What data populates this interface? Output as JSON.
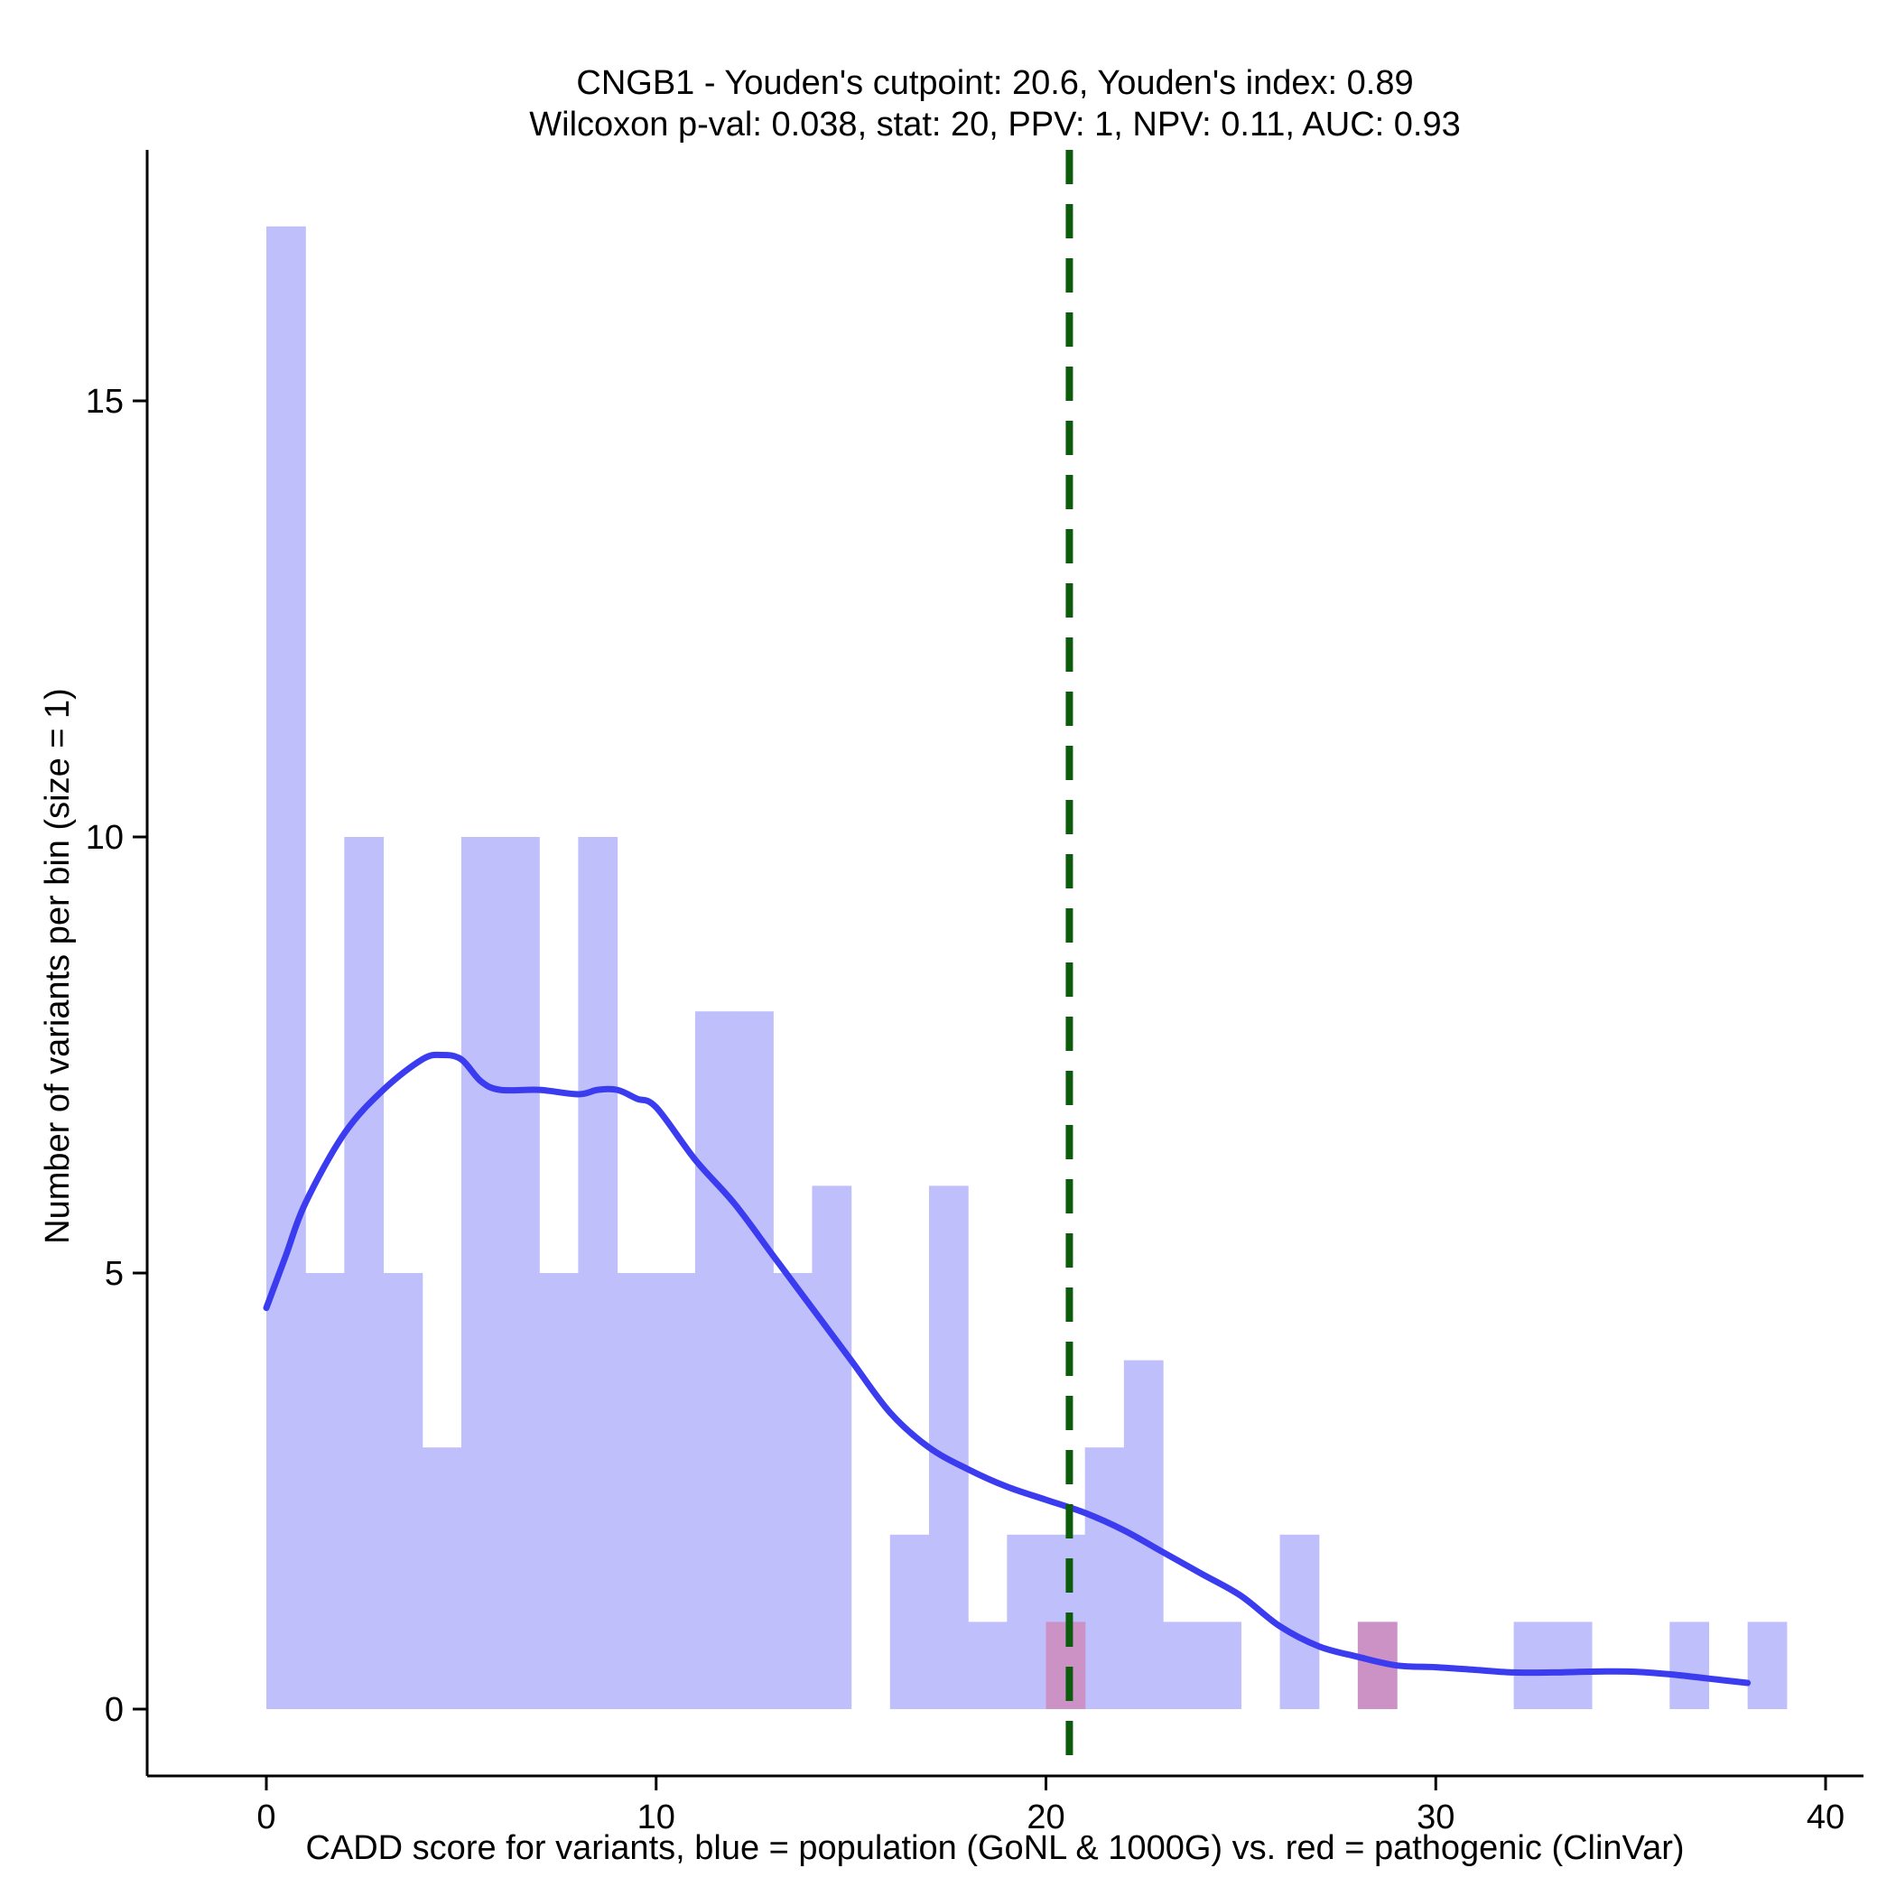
{
  "chart_data": {
    "type": "histogram",
    "title_line1": "CNGB1 - Youden's cutpoint: 20.6, Youden's index: 0.89",
    "title_line2": "Wilcoxon p-val: 0.038, stat: 20, PPV: 1, NPV: 0.11, AUC: 0.93",
    "xlabel": "CADD score for variants, blue = population (GoNL & 1000G) vs. red = pathogenic (ClinVar)",
    "ylabel": "Number of variants per bin (size = 1)",
    "xlim": [
      -3,
      41
    ],
    "ylim": [
      -0.9,
      17.9
    ],
    "xticks": [
      0,
      10,
      20,
      30,
      40
    ],
    "yticks": [
      0,
      5,
      10,
      15
    ],
    "bin_size": 1,
    "series": [
      {
        "name": "population (GoNL & 1000G)",
        "color": "#BFBFFC",
        "bin_starts": [
          0,
          1,
          2,
          3,
          4,
          5,
          6,
          7,
          8,
          9,
          10,
          11,
          12,
          13,
          14,
          15,
          16,
          17,
          18,
          19,
          20,
          21,
          22,
          23,
          24,
          25,
          26,
          27,
          28,
          29,
          30,
          31,
          32,
          33,
          34,
          35,
          36,
          37,
          38
        ],
        "values": [
          17,
          5,
          10,
          5,
          3,
          10,
          10,
          5,
          10,
          5,
          5,
          8,
          8,
          5,
          6,
          0,
          2,
          6,
          1,
          2,
          2,
          3,
          4,
          1,
          1,
          0,
          2,
          0,
          1,
          0,
          0,
          0,
          1,
          1,
          0,
          0,
          1,
          0,
          1
        ]
      },
      {
        "name": "pathogenic (ClinVar)",
        "color": "#CC8FC3",
        "bin_starts": [
          20,
          28
        ],
        "values": [
          1,
          1
        ]
      }
    ],
    "density_curve": {
      "name": "population density",
      "color": "#3B3BF0",
      "x": [
        0,
        0.5,
        1,
        2,
        3,
        4,
        4.5,
        5,
        5.5,
        6,
        7,
        8,
        8.5,
        9,
        9.5,
        10,
        11,
        12,
        13,
        14,
        15,
        16,
        17,
        18,
        19,
        20,
        21,
        22,
        23,
        24,
        25,
        26,
        27,
        28,
        29,
        30,
        31,
        32,
        33,
        34,
        35,
        36,
        37,
        38
      ],
      "y": [
        4.6,
        5.2,
        5.8,
        6.6,
        7.1,
        7.45,
        7.5,
        7.45,
        7.2,
        7.1,
        7.1,
        7.05,
        7.1,
        7.1,
        7.0,
        6.9,
        6.3,
        5.8,
        5.2,
        4.6,
        4.0,
        3.4,
        3.0,
        2.75,
        2.55,
        2.4,
        2.25,
        2.05,
        1.8,
        1.55,
        1.3,
        0.95,
        0.72,
        0.6,
        0.5,
        0.48,
        0.45,
        0.42,
        0.42,
        0.43,
        0.43,
        0.4,
        0.35,
        0.3
      ]
    },
    "cutpoint": {
      "value": 20.6,
      "color": "#0D5B0D",
      "style": "dashed"
    }
  }
}
